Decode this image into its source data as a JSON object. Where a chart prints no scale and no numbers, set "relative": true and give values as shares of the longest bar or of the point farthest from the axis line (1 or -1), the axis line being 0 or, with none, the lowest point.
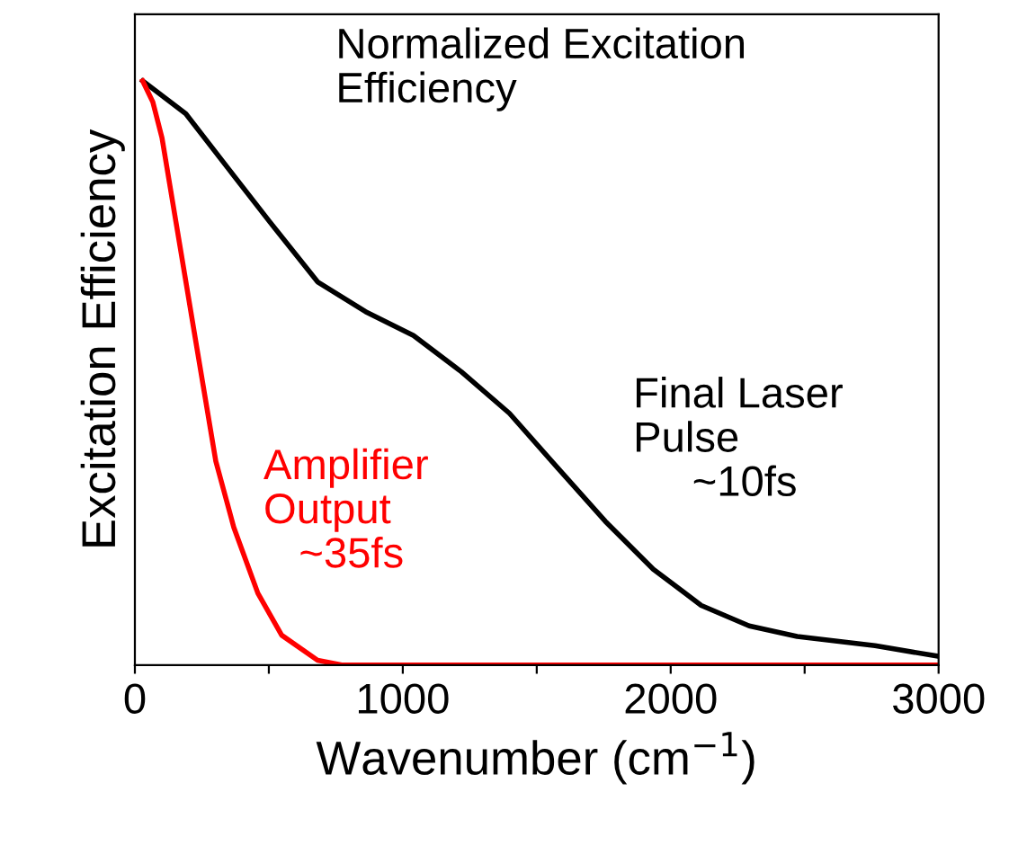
{
  "chart_data": {
    "type": "line",
    "relative": true,
    "xlabel": "Wavenumber (cm$^{−1}$)",
    "ylabel": "Excitation Efficiency",
    "annotations": [
      "Normalized Excitation\nEfficiency"
    ],
    "xlim": [
      0,
      3000
    ],
    "xticks": [
      0,
      {
        "value": 500,
        "label": null
      },
      1000,
      {
        "value": 1500,
        "label": null
      },
      2000,
      {
        "value": 2500,
        "label": null
      },
      3000
    ],
    "grid": false,
    "legend": false,
    "marker": "none",
    "line_style": "solid",
    "series": [
      {
        "name": "Final Laser\nPulse\n     ~10fs",
        "color": "#000000",
        "x": [
          29,
          190,
          347,
          503,
          682,
          861,
          1040,
          1219,
          1398,
          1577,
          1756,
          1935,
          2114,
          2293,
          2472,
          2763,
          2998
        ],
        "values": [
          1,
          0.944,
          0.851,
          0.759,
          0.656,
          0.605,
          0.564,
          0.502,
          0.431,
          0.338,
          0.246,
          0.164,
          0.102,
          0.067,
          0.049,
          0.033,
          0.015
        ]
      },
      {
        "name": "Amplifier\nOutput\n   ~35fs",
        "color": "#ff0000",
        "x": [
          29,
          67,
          101,
          168,
          235,
          302,
          369,
          459,
          548,
          682,
          772,
          3000
        ],
        "values": [
          1,
          0.964,
          0.903,
          0.718,
          0.533,
          0.349,
          0.236,
          0.123,
          0.051,
          0.008,
          0,
          0
        ]
      }
    ]
  }
}
